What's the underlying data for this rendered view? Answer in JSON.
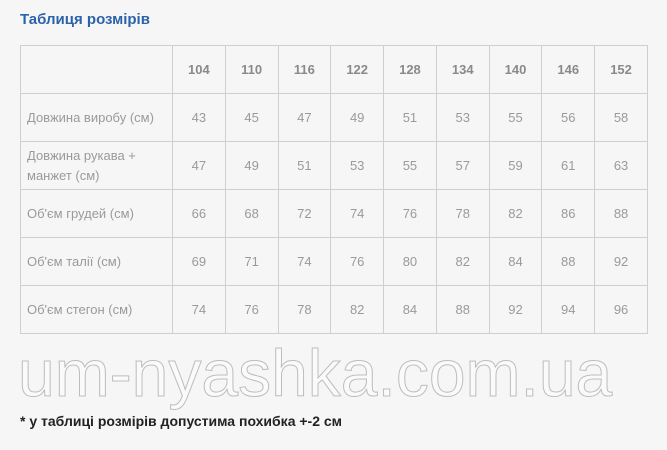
{
  "title": "Таблиця розмірів",
  "table": {
    "headers": [
      "",
      "104",
      "110",
      "116",
      "122",
      "128",
      "134",
      "140",
      "146",
      "152"
    ],
    "rows": [
      {
        "label": "Довжина виробу (см)",
        "values": [
          "43",
          "45",
          "47",
          "49",
          "51",
          "53",
          "55",
          "56",
          "58"
        ]
      },
      {
        "label": "Довжина рукава + манжет (см)",
        "values": [
          "47",
          "49",
          "51",
          "53",
          "55",
          "57",
          "59",
          "61",
          "63"
        ]
      },
      {
        "label": "Об'єм грудей (см)",
        "values": [
          "66",
          "68",
          "72",
          "74",
          "76",
          "78",
          "82",
          "86",
          "88"
        ]
      },
      {
        "label": "Об'єм талії (см)",
        "values": [
          "69",
          "71",
          "74",
          "76",
          "80",
          "82",
          "84",
          "88",
          "92"
        ]
      },
      {
        "label": "Об'єм стегон (см)",
        "values": [
          "74",
          "76",
          "78",
          "82",
          "84",
          "88",
          "92",
          "94",
          "96"
        ]
      }
    ]
  },
  "watermark": "um-nyashka.com.ua",
  "footnote": "* у таблиці розмірів допустима похибка +-2 см",
  "colors": {
    "title": "#2b62a8",
    "border": "#cfcfcf"
  }
}
